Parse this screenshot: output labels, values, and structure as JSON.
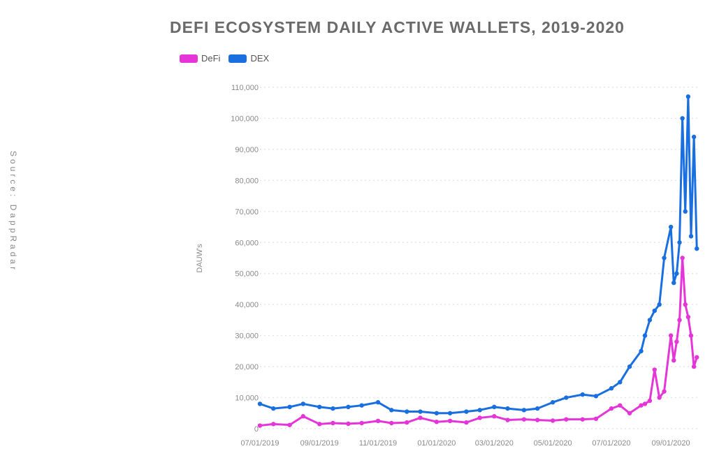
{
  "chart_data": {
    "type": "line",
    "title": "DEFI ECOSYSTEM DAILY ACTIVE WALLETS, 2019-2020",
    "source": "Source: DappRadar",
    "ylabel": "DAUW's",
    "xlabel": "",
    "ylim": [
      0,
      110000
    ],
    "yticks": [
      "0",
      "10,000",
      "20,000",
      "30,000",
      "40,000",
      "50,000",
      "60,000",
      "70,000",
      "80,000",
      "90,000",
      "100,000",
      "110,000"
    ],
    "xticks": [
      "07/01/2019",
      "09/01/2019",
      "11/01/2019",
      "01/01/2020",
      "03/01/2020",
      "05/01/2020",
      "07/01/2020",
      "09/01/2020"
    ],
    "grid": "horizontal dotted",
    "legend_position": "top-left",
    "colors": {
      "DeFi": "#e535d8",
      "DEX": "#1a6fe0"
    },
    "x": [
      "2019-07-01",
      "2019-07-15",
      "2019-08-01",
      "2019-08-15",
      "2019-09-01",
      "2019-09-15",
      "2019-10-01",
      "2019-10-15",
      "2019-11-01",
      "2019-11-15",
      "2019-12-01",
      "2019-12-15",
      "2020-01-01",
      "2020-01-15",
      "2020-02-01",
      "2020-02-15",
      "2020-03-01",
      "2020-03-15",
      "2020-04-01",
      "2020-04-15",
      "2020-05-01",
      "2020-05-15",
      "2020-06-01",
      "2020-06-15",
      "2020-07-01",
      "2020-07-10",
      "2020-07-20",
      "2020-08-01",
      "2020-08-05",
      "2020-08-10",
      "2020-08-15",
      "2020-08-20",
      "2020-08-25",
      "2020-09-01",
      "2020-09-04",
      "2020-09-07",
      "2020-09-10",
      "2020-09-13",
      "2020-09-16",
      "2020-09-19",
      "2020-09-22",
      "2020-09-25",
      "2020-09-28"
    ],
    "series": [
      {
        "name": "DEX",
        "values": [
          8000,
          6500,
          7000,
          8000,
          7000,
          6500,
          7000,
          7500,
          8500,
          6000,
          5500,
          5500,
          5000,
          5000,
          5500,
          6000,
          7000,
          6500,
          6000,
          6500,
          8500,
          10000,
          11000,
          10500,
          13000,
          15000,
          20000,
          25000,
          30000,
          35000,
          38000,
          40000,
          55000,
          65000,
          47000,
          50000,
          60000,
          100000,
          70000,
          107000,
          62000,
          94000,
          58000
        ]
      },
      {
        "name": "DeFi",
        "values": [
          1000,
          1500,
          1200,
          4000,
          1500,
          1800,
          1600,
          1800,
          2500,
          1800,
          2000,
          3500,
          2200,
          2500,
          2000,
          3500,
          4000,
          2800,
          3000,
          2800,
          2600,
          3000,
          3000,
          3200,
          6500,
          7500,
          5000,
          7500,
          8000,
          9000,
          19000,
          10000,
          12000,
          30000,
          22000,
          28000,
          35000,
          55000,
          40000,
          36000,
          30000,
          20000,
          23000
        ]
      }
    ]
  }
}
